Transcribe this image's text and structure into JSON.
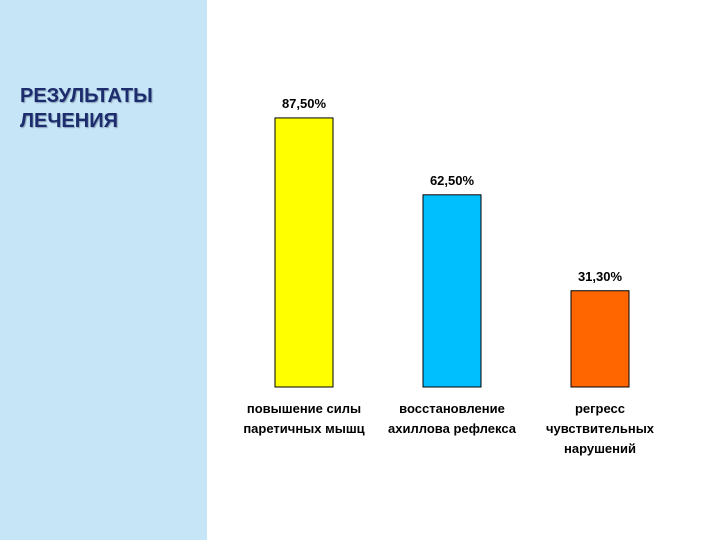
{
  "title": "РЕЗУЛЬТАТЫ ЛЕЧЕНИЯ",
  "chart_data": {
    "type": "bar",
    "categories": [
      "повышение силы паретичных мышц",
      "восстановление ахиллова рефлекса",
      "регресс чувствительных нарушений"
    ],
    "values": [
      87.5,
      62.5,
      31.3
    ],
    "value_labels": [
      "87,50%",
      "62,50%",
      "31,30%"
    ],
    "colors": [
      "#ffff00",
      "#00bfff",
      "#ff6600"
    ]
  }
}
